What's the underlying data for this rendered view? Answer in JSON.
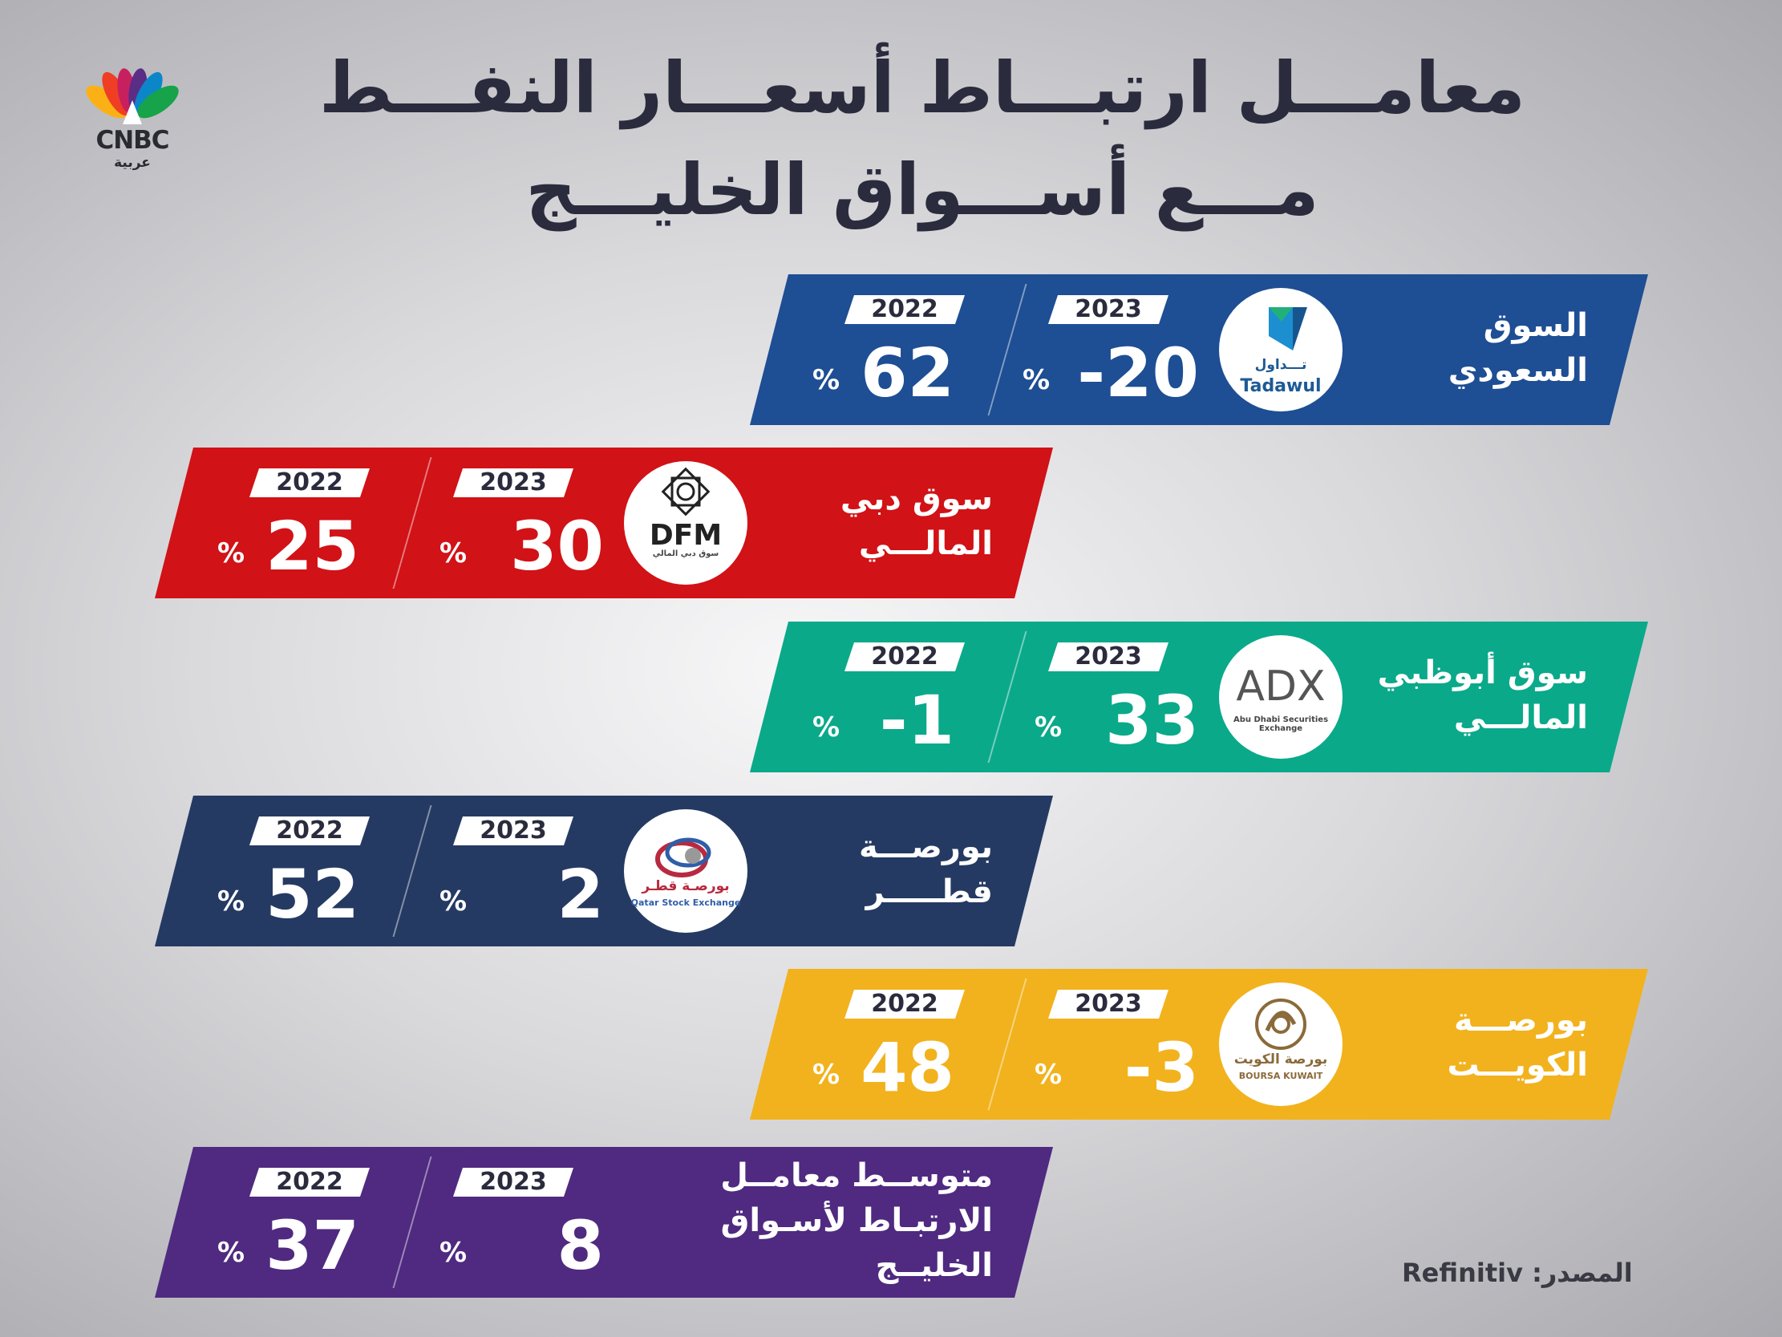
{
  "logo": {
    "brand": "CNBC",
    "sub": "عربية"
  },
  "title": {
    "line1": "معامـــل ارتبـــاط أسعـــار النفـــط",
    "line2": "مـــع أســـواق الخليـــج"
  },
  "colors": {
    "saudi": "#1e4e94",
    "dubai": "#d11217",
    "abudhabi": "#0aa98a",
    "qatar": "#253a63",
    "kuwait": "#f2b21d",
    "average": "#4f2a80"
  },
  "rows": [
    {
      "name": [
        "السوق",
        "السعودي"
      ],
      "emblem": {
        "icon": "tadawul-logo",
        "text1": "تـــداول",
        "text2": "Tadawul"
      },
      "y2023": "2023",
      "v2023": "-20",
      "y2022": "2022",
      "v2022": "62",
      "pct": "%"
    },
    {
      "name": [
        "سوق دبي",
        "المالـــي"
      ],
      "emblem": {
        "icon": "dfm-logo",
        "text1": "DFM",
        "text2": "سوق دبي المالي"
      },
      "y2023": "2023",
      "v2023": "30",
      "y2022": "2022",
      "v2022": "25",
      "pct": "%"
    },
    {
      "name": [
        "سوق أبوظبي",
        "المالـــي"
      ],
      "emblem": {
        "icon": "adx-logo",
        "text1": "ADX",
        "text2": "Abu Dhabi Securities Exchange"
      },
      "y2023": "2023",
      "v2023": "33",
      "y2022": "2022",
      "v2022": "-1",
      "pct": "%"
    },
    {
      "name": [
        "بورصـــة",
        "قطـــــر"
      ],
      "emblem": {
        "icon": "qatar-exchange-logo",
        "text1": "بورصـة قطـر",
        "text2": "Qatar Stock Exchange"
      },
      "y2023": "2023",
      "v2023": "2",
      "y2022": "2022",
      "v2022": "52",
      "pct": "%"
    },
    {
      "name": [
        "بورصـــة",
        "الكويـــت"
      ],
      "emblem": {
        "icon": "boursa-kuwait-logo",
        "text1": "بورصة الكويت",
        "text2": "BOURSA KUWAIT"
      },
      "y2023": "2023",
      "v2023": "-3",
      "y2022": "2022",
      "v2022": "48",
      "pct": "%"
    },
    {
      "name": [
        "متوســط معامــل",
        "الارتبـاط لأسـواق",
        "الخليــج"
      ],
      "emblem": null,
      "y2023": "2023",
      "v2023": "8",
      "y2022": "2022",
      "v2022": "37",
      "pct": "%"
    }
  ],
  "source": "المصدر: Refinitiv"
}
